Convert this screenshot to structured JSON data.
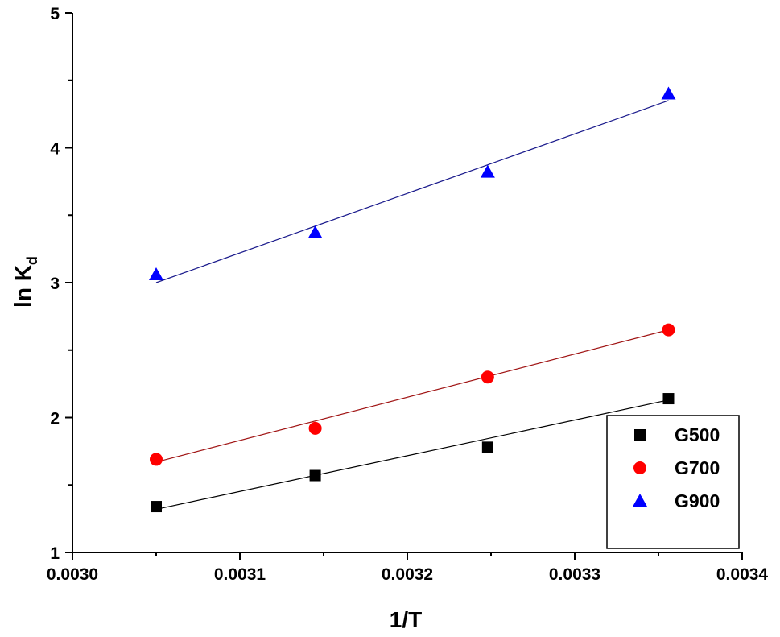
{
  "chart_data": {
    "type": "scatter",
    "title": "",
    "xlabel": "1/T",
    "ylabel_main": "ln K",
    "ylabel_sub": "d",
    "xlim": [
      0.003,
      0.0034
    ],
    "ylim": [
      1,
      5
    ],
    "xticks": [
      0.003,
      0.0031,
      0.0032,
      0.0033,
      0.0034
    ],
    "xtick_labels": [
      "0.0030",
      "0.0031",
      "0.0032",
      "0.0033",
      "0.0034"
    ],
    "yticks": [
      1,
      2,
      3,
      4,
      5
    ],
    "ytick_labels": [
      "1",
      "2",
      "3",
      "4",
      "5"
    ],
    "grid": false,
    "legend_position": "bottom-right",
    "series": [
      {
        "name": "G500",
        "marker": "square",
        "color": "#000000",
        "line_color": "#000000",
        "x": [
          0.00305,
          0.003145,
          0.003248,
          0.003356
        ],
        "y": [
          1.34,
          1.57,
          1.78,
          2.14
        ],
        "fit": {
          "x": [
            0.00305,
            0.003356
          ],
          "y": [
            1.32,
            2.13
          ]
        }
      },
      {
        "name": "G700",
        "marker": "circle",
        "color": "#ff0000",
        "line_color": "#a01414",
        "x": [
          0.00305,
          0.003145,
          0.003248,
          0.003356
        ],
        "y": [
          1.69,
          1.92,
          2.3,
          2.65
        ],
        "fit": {
          "x": [
            0.00305,
            0.003356
          ],
          "y": [
            1.67,
            2.65
          ]
        }
      },
      {
        "name": "G900",
        "marker": "triangle",
        "color": "#0000ff",
        "line_color": "#1a1a8c",
        "x": [
          0.00305,
          0.003145,
          0.003248,
          0.003356
        ],
        "y": [
          3.06,
          3.37,
          3.82,
          4.4
        ],
        "fit": {
          "x": [
            0.00305,
            0.003356
          ],
          "y": [
            3.0,
            4.35
          ]
        }
      }
    ]
  }
}
